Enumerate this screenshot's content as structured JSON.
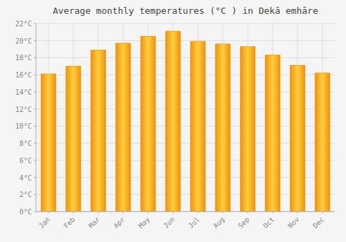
{
  "chart_data": {
    "type": "bar",
    "title": "Average monthly temperatures (°C ) in Dekā emhāre",
    "categories": [
      "Jan",
      "Feb",
      "Mar",
      "Apr",
      "May",
      "Jun",
      "Jul",
      "Aug",
      "Sep",
      "Oct",
      "Nov",
      "Dec"
    ],
    "values": [
      16.1,
      17.0,
      18.9,
      19.7,
      20.5,
      21.1,
      19.9,
      19.6,
      19.3,
      18.3,
      17.1,
      16.2
    ],
    "color": "#F0900A",
    "ylim": [
      0,
      22
    ],
    "yticks": [
      {
        "value": 0,
        "label": "0°C"
      },
      {
        "value": 2,
        "label": "2°C"
      },
      {
        "value": 4,
        "label": "4°C"
      },
      {
        "value": 6,
        "label": "6°C"
      },
      {
        "value": 8,
        "label": "8°C"
      },
      {
        "value": 10,
        "label": "10°C"
      },
      {
        "value": 12,
        "label": "12°C"
      },
      {
        "value": 14,
        "label": "14°C"
      },
      {
        "value": 16,
        "label": "16°C"
      },
      {
        "value": 18,
        "label": "18°C"
      },
      {
        "value": 20,
        "label": "20°C"
      },
      {
        "value": 22,
        "label": "22°C"
      }
    ],
    "grid": true
  }
}
